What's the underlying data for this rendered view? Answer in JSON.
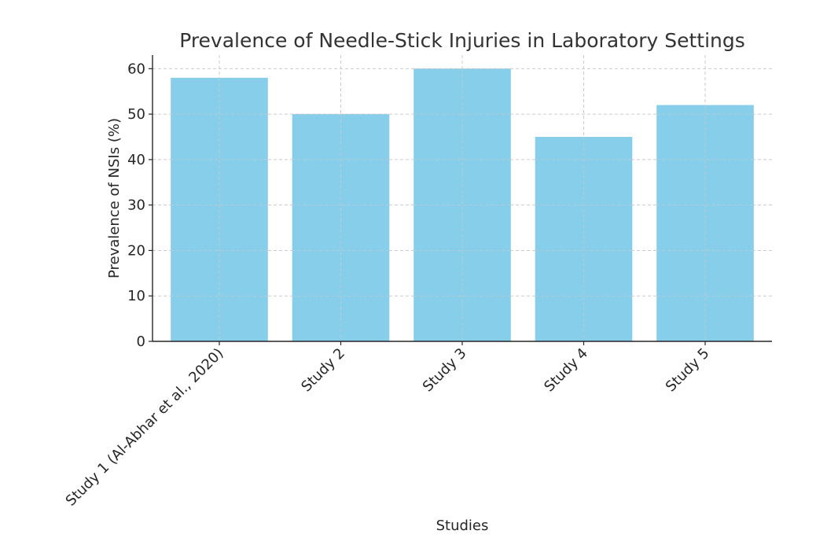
{
  "chart_data": {
    "type": "bar",
    "title": "Prevalence of Needle-Stick Injuries in Laboratory Settings",
    "xlabel": "Studies",
    "ylabel": "Prevalence of NSIs (%)",
    "categories": [
      "Study 1 (Al-Abhar et al., 2020)",
      "Study 2",
      "Study 3",
      "Study 4",
      "Study 5"
    ],
    "values": [
      58,
      50,
      60,
      45,
      52
    ],
    "ylim": [
      0,
      63
    ],
    "yticks": [
      0,
      10,
      20,
      30,
      40,
      50,
      60
    ],
    "grid": true,
    "bar_color": "#87CEEB"
  }
}
